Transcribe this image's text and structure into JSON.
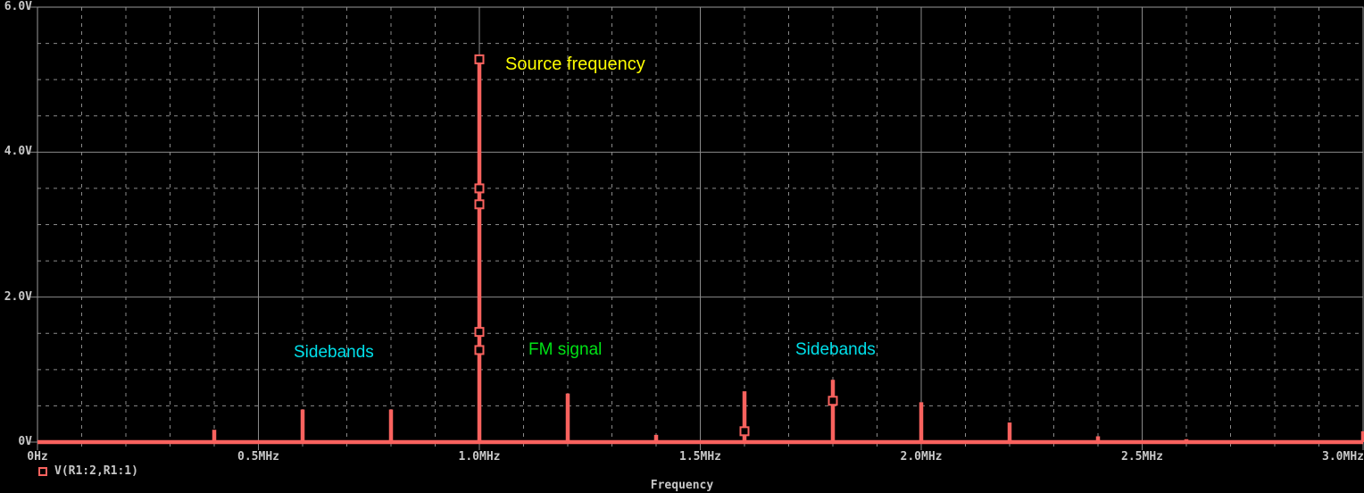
{
  "window": {
    "background": "#000000"
  },
  "colors": {
    "plot_background": "#000000",
    "grid": "#8a8a8a",
    "plot_border": "#9a9a9a",
    "axis_text": "#c8c8c8",
    "trace": "#f9625e",
    "annotation_yellow": "#ffff00",
    "annotation_cyan": "#00e0ea",
    "annotation_green": "#00e216"
  },
  "chart_data": {
    "type": "bar",
    "subtype": "frequency-spectrum-spikes",
    "title": "",
    "xlabel": "Frequency",
    "ylabel": "",
    "xlim_mhz": [
      0,
      3.0
    ],
    "ylim_volts": [
      0,
      6.0
    ],
    "x_minor_step_mhz": 0.1,
    "y_minor_step_v": 0.5,
    "grid": "on",
    "x_ticks": [
      {
        "value_mhz": 0.0,
        "label": "0Hz"
      },
      {
        "value_mhz": 0.5,
        "label": "0.5MHz"
      },
      {
        "value_mhz": 1.0,
        "label": "1.0MHz"
      },
      {
        "value_mhz": 1.5,
        "label": "1.5MHz"
      },
      {
        "value_mhz": 2.0,
        "label": "2.0MHz"
      },
      {
        "value_mhz": 2.5,
        "label": "2.5MHz"
      },
      {
        "value_mhz": 3.0,
        "label": "3.0MHz"
      }
    ],
    "y_ticks": [
      {
        "value_v": 0,
        "label": "0V"
      },
      {
        "value_v": 2,
        "label": "2.0V"
      },
      {
        "value_v": 4,
        "label": "4.0V"
      },
      {
        "value_v": 6,
        "label": "6.0V"
      }
    ],
    "series": [
      {
        "name": "V(R1:2,R1:1)",
        "color": "#f9625e",
        "spectral_lines": [
          {
            "freq_mhz": 0.4,
            "amplitude_v": 0.17
          },
          {
            "freq_mhz": 0.6,
            "amplitude_v": 0.45
          },
          {
            "freq_mhz": 0.8,
            "amplitude_v": 0.45
          },
          {
            "freq_mhz": 1.0,
            "amplitude_v": 5.28
          },
          {
            "freq_mhz": 1.2,
            "amplitude_v": 0.67
          },
          {
            "freq_mhz": 1.4,
            "amplitude_v": 0.1
          },
          {
            "freq_mhz": 1.6,
            "amplitude_v": 0.7
          },
          {
            "freq_mhz": 1.8,
            "amplitude_v": 0.86
          },
          {
            "freq_mhz": 2.0,
            "amplitude_v": 0.55
          },
          {
            "freq_mhz": 2.2,
            "amplitude_v": 0.27
          },
          {
            "freq_mhz": 2.4,
            "amplitude_v": 0.08
          },
          {
            "freq_mhz": 2.6,
            "amplitude_v": 0.04
          },
          {
            "freq_mhz": 3.0,
            "amplitude_v": 0.15
          }
        ],
        "marker_points": [
          {
            "freq_mhz": 1.0,
            "amplitude_v": 5.28
          },
          {
            "freq_mhz": 1.0,
            "amplitude_v": 3.5
          },
          {
            "freq_mhz": 1.0,
            "amplitude_v": 3.28
          },
          {
            "freq_mhz": 1.0,
            "amplitude_v": 1.52
          },
          {
            "freq_mhz": 1.0,
            "amplitude_v": 1.27
          },
          {
            "freq_mhz": 1.6,
            "amplitude_v": 0.15
          },
          {
            "freq_mhz": 1.8,
            "amplitude_v": 0.57
          }
        ]
      }
    ],
    "legend_position": "bottom-left"
  },
  "legend": {
    "label": "V(R1:2,R1:1)"
  },
  "annotations": {
    "source_frequency": {
      "text": "Source frequency",
      "color": "#ffff00"
    },
    "sidebands_left": {
      "text": "Sidebands",
      "color": "#00e0ea"
    },
    "fm_signal": {
      "text": "FM signal",
      "color": "#00e216"
    },
    "sidebands_right": {
      "text": "Sidebands",
      "color": "#00e0ea"
    }
  }
}
